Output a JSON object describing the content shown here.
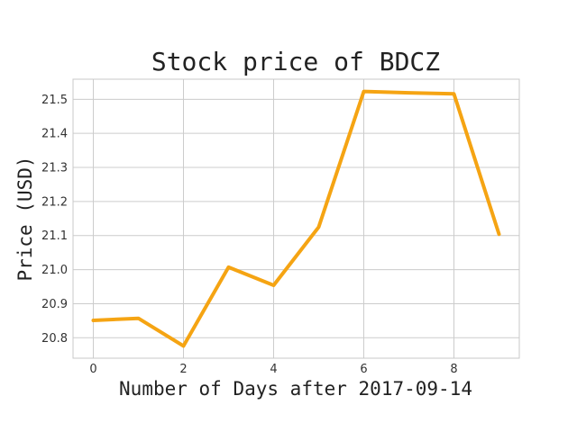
{
  "chart_data": {
    "type": "line",
    "title": "Stock price of BDCZ",
    "xlabel": "Number of Days after 2017-09-14",
    "ylabel": "Price (USD)",
    "x": [
      0,
      1,
      2,
      3,
      4,
      5,
      6,
      7,
      8,
      9
    ],
    "series": [
      {
        "values": [
          20.851,
          20.857,
          20.776,
          21.007,
          20.954,
          21.125,
          21.523,
          21.519,
          21.516,
          21.104
        ]
      }
    ],
    "xlim": [
      -0.45,
      9.45
    ],
    "ylim": [
      20.74,
      21.559
    ],
    "xticks": [
      0,
      2,
      4,
      6,
      8
    ],
    "yticks": [
      20.8,
      20.9,
      21.0,
      21.1,
      21.2,
      21.3,
      21.4,
      21.5
    ],
    "grid": true,
    "line_color": "#f5a413"
  }
}
